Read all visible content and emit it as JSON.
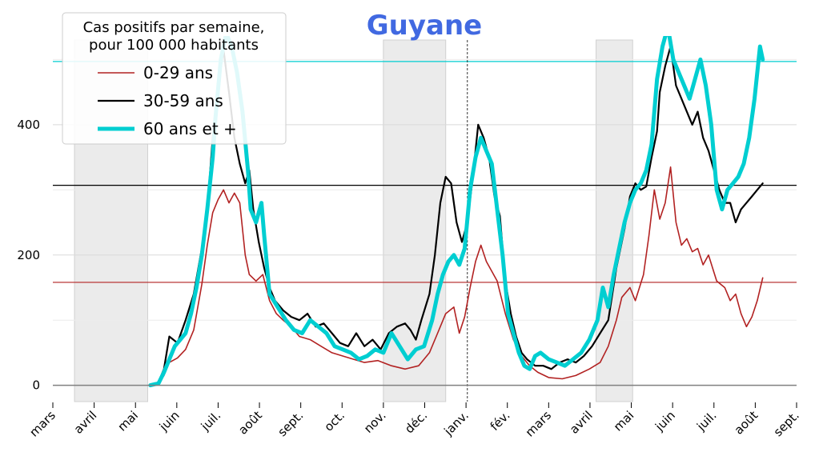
{
  "chart_data": {
    "type": "line",
    "title": "Guyane",
    "title_color": "#4169e1",
    "legend": {
      "title_lines": [
        "Cas positifs par semaine,",
        "pour 100 000 habitants"
      ],
      "placement": "top-left"
    },
    "x_ticks": [
      "mars",
      "avril",
      "mai",
      "juin",
      "juil.",
      "août",
      "sept.",
      "oct.",
      "nov.",
      "déc.",
      "janv.",
      "fév.",
      "mars",
      "avril",
      "mai",
      "juin",
      "juil.",
      "août",
      "sept."
    ],
    "y_ticks": [
      0,
      200,
      400
    ],
    "ylim": [
      -25,
      530
    ],
    "xlim": [
      0,
      549
    ],
    "x_unit": "days since 2020-03-01",
    "grid": "horizontal",
    "lockdown_periods": [
      [
        16,
        70
      ],
      [
        244,
        290
      ],
      [
        401,
        428
      ]
    ],
    "year_marker": 306,
    "series": [
      {
        "name": "0-29 ans",
        "color": "#b22222",
        "reference": 158,
        "points": [
          [
            72,
            0
          ],
          [
            78,
            3
          ],
          [
            82,
            15
          ],
          [
            86,
            35
          ],
          [
            92,
            42
          ],
          [
            98,
            55
          ],
          [
            104,
            85
          ],
          [
            110,
            155
          ],
          [
            114,
            215
          ],
          [
            118,
            265
          ],
          [
            122,
            285
          ],
          [
            126,
            300
          ],
          [
            130,
            280
          ],
          [
            134,
            295
          ],
          [
            138,
            280
          ],
          [
            142,
            200
          ],
          [
            145,
            170
          ],
          [
            150,
            160
          ],
          [
            155,
            170
          ],
          [
            160,
            130
          ],
          [
            165,
            110
          ],
          [
            170,
            100
          ],
          [
            176,
            90
          ],
          [
            182,
            75
          ],
          [
            190,
            70
          ],
          [
            198,
            60
          ],
          [
            206,
            50
          ],
          [
            214,
            45
          ],
          [
            222,
            40
          ],
          [
            230,
            35
          ],
          [
            240,
            38
          ],
          [
            250,
            30
          ],
          [
            260,
            25
          ],
          [
            270,
            30
          ],
          [
            278,
            50
          ],
          [
            284,
            80
          ],
          [
            290,
            110
          ],
          [
            296,
            120
          ],
          [
            300,
            80
          ],
          [
            304,
            105
          ],
          [
            308,
            150
          ],
          [
            312,
            190
          ],
          [
            316,
            215
          ],
          [
            320,
            190
          ],
          [
            324,
            175
          ],
          [
            328,
            160
          ],
          [
            334,
            110
          ],
          [
            340,
            70
          ],
          [
            346,
            45
          ],
          [
            352,
            30
          ],
          [
            358,
            20
          ],
          [
            366,
            12
          ],
          [
            376,
            10
          ],
          [
            386,
            15
          ],
          [
            396,
            25
          ],
          [
            404,
            35
          ],
          [
            410,
            60
          ],
          [
            416,
            100
          ],
          [
            420,
            135
          ],
          [
            426,
            150
          ],
          [
            430,
            130
          ],
          [
            436,
            170
          ],
          [
            440,
            230
          ],
          [
            444,
            300
          ],
          [
            448,
            255
          ],
          [
            452,
            280
          ],
          [
            456,
            335
          ],
          [
            460,
            250
          ],
          [
            464,
            215
          ],
          [
            468,
            225
          ],
          [
            472,
            205
          ],
          [
            476,
            210
          ],
          [
            480,
            185
          ],
          [
            484,
            200
          ],
          [
            490,
            160
          ],
          [
            496,
            150
          ],
          [
            500,
            130
          ],
          [
            504,
            140
          ],
          [
            508,
            110
          ],
          [
            512,
            90
          ],
          [
            516,
            105
          ],
          [
            520,
            130
          ],
          [
            524,
            165
          ]
        ]
      },
      {
        "name": "30-59 ans",
        "color": "#000000",
        "reference": 307,
        "points": [
          [
            72,
            0
          ],
          [
            78,
            5
          ],
          [
            82,
            25
          ],
          [
            86,
            75
          ],
          [
            92,
            65
          ],
          [
            98,
            100
          ],
          [
            104,
            140
          ],
          [
            110,
            210
          ],
          [
            114,
            270
          ],
          [
            118,
            380
          ],
          [
            122,
            460
          ],
          [
            126,
            515
          ],
          [
            130,
            450
          ],
          [
            134,
            380
          ],
          [
            138,
            340
          ],
          [
            142,
            310
          ],
          [
            145,
            330
          ],
          [
            148,
            270
          ],
          [
            152,
            220
          ],
          [
            156,
            180
          ],
          [
            160,
            150
          ],
          [
            164,
            130
          ],
          [
            170,
            115
          ],
          [
            176,
            105
          ],
          [
            182,
            100
          ],
          [
            188,
            110
          ],
          [
            194,
            90
          ],
          [
            200,
            95
          ],
          [
            206,
            80
          ],
          [
            212,
            65
          ],
          [
            218,
            60
          ],
          [
            224,
            80
          ],
          [
            230,
            60
          ],
          [
            236,
            70
          ],
          [
            242,
            55
          ],
          [
            248,
            80
          ],
          [
            254,
            90
          ],
          [
            260,
            95
          ],
          [
            264,
            85
          ],
          [
            268,
            70
          ],
          [
            272,
            100
          ],
          [
            278,
            140
          ],
          [
            282,
            200
          ],
          [
            286,
            280
          ],
          [
            290,
            320
          ],
          [
            294,
            310
          ],
          [
            298,
            250
          ],
          [
            302,
            220
          ],
          [
            306,
            250
          ],
          [
            310,
            320
          ],
          [
            314,
            400
          ],
          [
            318,
            380
          ],
          [
            322,
            350
          ],
          [
            326,
            290
          ],
          [
            330,
            260
          ],
          [
            334,
            160
          ],
          [
            338,
            110
          ],
          [
            342,
            75
          ],
          [
            346,
            50
          ],
          [
            350,
            40
          ],
          [
            356,
            30
          ],
          [
            362,
            30
          ],
          [
            368,
            25
          ],
          [
            374,
            35
          ],
          [
            380,
            40
          ],
          [
            386,
            35
          ],
          [
            392,
            45
          ],
          [
            398,
            60
          ],
          [
            404,
            80
          ],
          [
            410,
            100
          ],
          [
            416,
            180
          ],
          [
            422,
            240
          ],
          [
            426,
            290
          ],
          [
            430,
            310
          ],
          [
            434,
            300
          ],
          [
            438,
            305
          ],
          [
            442,
            350
          ],
          [
            446,
            390
          ],
          [
            448,
            450
          ],
          [
            452,
            490
          ],
          [
            456,
            520
          ],
          [
            460,
            460
          ],
          [
            464,
            440
          ],
          [
            468,
            420
          ],
          [
            472,
            400
          ],
          [
            476,
            420
          ],
          [
            480,
            380
          ],
          [
            484,
            360
          ],
          [
            488,
            330
          ],
          [
            492,
            300
          ],
          [
            496,
            280
          ],
          [
            500,
            280
          ],
          [
            504,
            250
          ],
          [
            508,
            270
          ],
          [
            512,
            280
          ],
          [
            516,
            290
          ],
          [
            520,
            300
          ],
          [
            524,
            310
          ]
        ]
      },
      {
        "name": "60 ans et +",
        "color": "#00ced1",
        "reference": 497,
        "points": [
          [
            72,
            0
          ],
          [
            78,
            3
          ],
          [
            82,
            20
          ],
          [
            86,
            40
          ],
          [
            90,
            60
          ],
          [
            94,
            70
          ],
          [
            98,
            80
          ],
          [
            102,
            110
          ],
          [
            106,
            150
          ],
          [
            110,
            200
          ],
          [
            114,
            270
          ],
          [
            118,
            350
          ],
          [
            120,
            410
          ],
          [
            124,
            500
          ],
          [
            128,
            540
          ],
          [
            132,
            520
          ],
          [
            136,
            480
          ],
          [
            140,
            420
          ],
          [
            144,
            330
          ],
          [
            146,
            270
          ],
          [
            150,
            250
          ],
          [
            154,
            280
          ],
          [
            156,
            230
          ],
          [
            160,
            140
          ],
          [
            166,
            120
          ],
          [
            172,
            100
          ],
          [
            178,
            85
          ],
          [
            184,
            80
          ],
          [
            190,
            100
          ],
          [
            196,
            90
          ],
          [
            202,
            80
          ],
          [
            208,
            60
          ],
          [
            214,
            55
          ],
          [
            220,
            50
          ],
          [
            226,
            40
          ],
          [
            232,
            45
          ],
          [
            238,
            55
          ],
          [
            244,
            50
          ],
          [
            250,
            80
          ],
          [
            256,
            60
          ],
          [
            262,
            40
          ],
          [
            268,
            55
          ],
          [
            274,
            60
          ],
          [
            280,
            100
          ],
          [
            284,
            140
          ],
          [
            288,
            170
          ],
          [
            292,
            190
          ],
          [
            296,
            200
          ],
          [
            300,
            185
          ],
          [
            304,
            210
          ],
          [
            308,
            300
          ],
          [
            312,
            350
          ],
          [
            316,
            380
          ],
          [
            320,
            360
          ],
          [
            324,
            340
          ],
          [
            328,
            270
          ],
          [
            332,
            200
          ],
          [
            336,
            110
          ],
          [
            340,
            80
          ],
          [
            344,
            50
          ],
          [
            348,
            30
          ],
          [
            352,
            25
          ],
          [
            356,
            45
          ],
          [
            360,
            50
          ],
          [
            366,
            40
          ],
          [
            372,
            35
          ],
          [
            378,
            30
          ],
          [
            384,
            40
          ],
          [
            390,
            50
          ],
          [
            396,
            70
          ],
          [
            402,
            100
          ],
          [
            406,
            150
          ],
          [
            410,
            120
          ],
          [
            414,
            170
          ],
          [
            418,
            210
          ],
          [
            422,
            250
          ],
          [
            426,
            280
          ],
          [
            430,
            300
          ],
          [
            434,
            310
          ],
          [
            438,
            330
          ],
          [
            442,
            370
          ],
          [
            444,
            420
          ],
          [
            446,
            470
          ],
          [
            450,
            520
          ],
          [
            454,
            550
          ],
          [
            458,
            500
          ],
          [
            462,
            480
          ],
          [
            466,
            460
          ],
          [
            470,
            440
          ],
          [
            474,
            470
          ],
          [
            478,
            500
          ],
          [
            482,
            460
          ],
          [
            486,
            400
          ],
          [
            490,
            300
          ],
          [
            494,
            270
          ],
          [
            498,
            300
          ],
          [
            502,
            310
          ],
          [
            506,
            320
          ],
          [
            510,
            340
          ],
          [
            514,
            380
          ],
          [
            518,
            440
          ],
          [
            522,
            520
          ],
          [
            524,
            500
          ]
        ]
      }
    ]
  }
}
